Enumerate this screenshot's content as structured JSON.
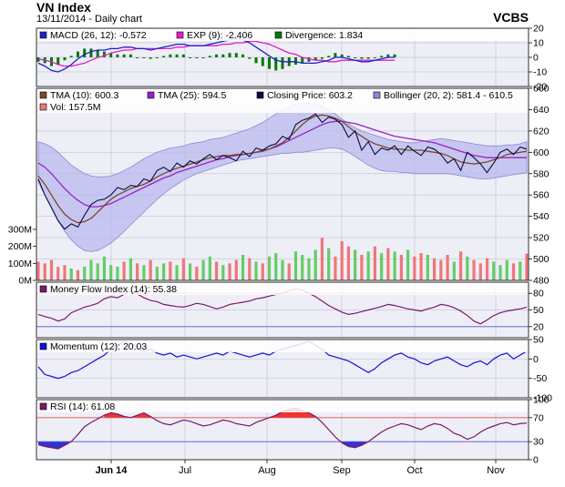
{
  "header": {
    "title": "VN Index",
    "subtitle": "13/11/2014 - Daily chart",
    "brand": "VCBS"
  },
  "colors": {
    "panel_bg": "#eeeef6",
    "grid": "#c8c8d8",
    "frame": "#333333",
    "macd": "#1f1fd0",
    "exp": "#e020c0",
    "divergence": "#007a00",
    "tma10": "#7a4a2a",
    "tma25": "#9a20c8",
    "close": "#0a0a40",
    "bollinger": "#8888dd",
    "vol_up": "#66cc66",
    "vol_down": "#ee7777",
    "mfi": "#7a1a6a",
    "momentum": "#1212d8",
    "rsi": "#7a1a6a",
    "ob_fill": "#ee3333",
    "os_fill": "#3333cc",
    "level_high": "#dd5555",
    "level_low": "#5555dd"
  },
  "chart_data": [
    {
      "type": "line",
      "panel": "macd",
      "ylim": [
        -20,
        20
      ],
      "yticks": [
        "20",
        "10",
        "0",
        "-10",
        "-20"
      ],
      "legend": [
        {
          "label": "MACD (26, 12): -0.572",
          "color": "#1f1fd0"
        },
        {
          "label": "EXP (9): -2.406",
          "color": "#e020c0"
        },
        {
          "label": "Divergence: 1.834",
          "color": "#007a00"
        }
      ],
      "series": {
        "macd": [
          -4,
          -6,
          -9,
          -10,
          -8,
          -5,
          -1,
          2,
          4,
          5,
          5,
          6,
          6,
          7,
          7,
          6,
          6,
          5,
          6,
          7,
          8,
          9,
          9,
          8,
          8,
          8,
          9,
          10,
          11,
          12,
          13,
          12,
          10,
          7,
          4,
          1,
          -2,
          -3,
          -3,
          -3,
          -4,
          -4,
          -4,
          -3,
          -2,
          0,
          0,
          -1,
          -2,
          -3,
          -3,
          -2,
          -1,
          0,
          0
        ],
        "exp": [
          -1,
          -2,
          -3,
          -5,
          -6,
          -6,
          -5,
          -4,
          -2,
          0,
          1,
          3,
          4,
          5,
          5,
          6,
          6,
          6,
          6,
          6,
          6,
          7,
          7,
          8,
          8,
          8,
          8,
          8,
          9,
          9,
          10,
          10,
          11,
          11,
          10,
          9,
          7,
          5,
          3,
          2,
          0,
          -1,
          -2,
          -2,
          -3,
          -3,
          -2,
          -2,
          -2,
          -2,
          -2,
          -2,
          -2,
          -2,
          -2
        ],
        "divergence": [
          -3,
          -4,
          -6,
          -5,
          -2,
          1,
          4,
          6,
          6,
          5,
          4,
          3,
          2,
          2,
          2,
          0,
          0,
          -1,
          0,
          1,
          2,
          2,
          2,
          0,
          0,
          0,
          1,
          2,
          2,
          3,
          3,
          2,
          -1,
          -4,
          -6,
          -8,
          -9,
          -8,
          -6,
          -5,
          -4,
          -3,
          -2,
          -1,
          1,
          3,
          2,
          1,
          0,
          -1,
          -1,
          0,
          1,
          2,
          2
        ]
      }
    },
    {
      "type": "line",
      "panel": "price",
      "ylim": [
        480,
        660
      ],
      "yticks": [
        "660",
        "640",
        "620",
        "600",
        "580",
        "560",
        "540",
        "520",
        "500",
        "480"
      ],
      "vol_yticks": [
        "300M",
        "200M",
        "100M",
        "0M"
      ],
      "legend": [
        {
          "label": "TMA (10): 600.3",
          "color": "#7a4a2a"
        },
        {
          "label": "TMA (25): 594.5",
          "color": "#9a20c8"
        },
        {
          "label": "Closing Price: 603.2",
          "color": "#0a0a40"
        },
        {
          "label": "Bollinger (20, 2): 581.4 - 610.5",
          "color": "#8888dd"
        },
        {
          "label": "Vol: 157.5M",
          "color": "#ee7777"
        }
      ],
      "series": {
        "close": [
          575,
          560,
          548,
          536,
          528,
          533,
          530,
          541,
          551,
          555,
          556,
          560,
          567,
          565,
          569,
          568,
          575,
          573,
          583,
          586,
          582,
          590,
          586,
          592,
          589,
          594,
          598,
          593,
          597,
          595,
          592,
          601,
          596,
          604,
          602,
          606,
          608,
          615,
          612,
          626,
          630,
          632,
          636,
          628,
          633,
          631,
          626,
          614,
          620,
          602,
          610,
          598,
          604,
          602,
          606,
          598,
          606,
          601,
          597,
          605,
          603,
          598,
          590,
          594,
          583,
          600,
          595,
          589,
          581,
          590,
          600,
          603,
          598,
          605,
          603
        ],
        "tma10": [
          578,
          570,
          560,
          550,
          542,
          537,
          534,
          535,
          538,
          544,
          550,
          556,
          560,
          563,
          566,
          568,
          570,
          573,
          577,
          580,
          583,
          585,
          587,
          589,
          591,
          593,
          595,
          596,
          597,
          597,
          598,
          598,
          599,
          600,
          601,
          603,
          606,
          609,
          614,
          620,
          626,
          631,
          634,
          635,
          634,
          632,
          629,
          624,
          619,
          615,
          611,
          608,
          606,
          604,
          603,
          603,
          602,
          602,
          602,
          601,
          600,
          599,
          597,
          594,
          591,
          590,
          589,
          590,
          591,
          593,
          595,
          598,
          599,
          600,
          601
        ],
        "tma25": [
          590,
          586,
          580,
          573,
          566,
          560,
          555,
          551,
          549,
          549,
          550,
          552,
          555,
          558,
          561,
          564,
          567,
          570,
          573,
          576,
          578,
          581,
          583,
          585,
          587,
          589,
          591,
          593,
          594,
          596,
          597,
          598,
          599,
          600,
          602,
          603,
          605,
          608,
          611,
          614,
          617,
          620,
          623,
          626,
          628,
          629,
          629,
          628,
          627,
          625,
          623,
          621,
          619,
          617,
          615,
          614,
          613,
          612,
          611,
          610,
          609,
          607,
          605,
          603,
          601,
          599,
          597,
          596,
          595,
          595,
          595,
          595,
          595,
          595,
          595
        ],
        "boll_upper": [
          610,
          608,
          605,
          600,
          594,
          588,
          584,
          580,
          578,
          577,
          577,
          578,
          580,
          583,
          586,
          590,
          594,
          597,
          600,
          602,
          604,
          605,
          606,
          608,
          609,
          610,
          612,
          613,
          614,
          616,
          618,
          620,
          622,
          625,
          628,
          632,
          636,
          640,
          643,
          645,
          646,
          646,
          645,
          643,
          640,
          636,
          631,
          627,
          623,
          620,
          618,
          616,
          614,
          612,
          611,
          610,
          609,
          609,
          610,
          611,
          612,
          613,
          612,
          611,
          610,
          609,
          608,
          607,
          606,
          606,
          606,
          607,
          607,
          608,
          610
        ],
        "boll_lower": [
          572,
          560,
          548,
          536,
          526,
          518,
          512,
          508,
          507,
          508,
          511,
          515,
          520,
          526,
          532,
          538,
          544,
          550,
          556,
          561,
          566,
          570,
          574,
          577,
          580,
          582,
          584,
          586,
          588,
          590,
          592,
          593,
          594,
          595,
          596,
          597,
          598,
          599,
          599,
          600,
          600,
          601,
          602,
          603,
          604,
          604,
          603,
          600,
          596,
          592,
          588,
          585,
          583,
          582,
          582,
          581,
          581,
          580,
          580,
          580,
          580,
          580,
          580,
          579,
          578,
          577,
          576,
          575,
          575,
          576,
          577,
          578,
          579,
          580,
          581
        ],
        "volume": [
          110,
          100,
          120,
          80,
          90,
          70,
          60,
          80,
          120,
          100,
          140,
          90,
          80,
          110,
          130,
          100,
          90,
          120,
          80,
          100,
          110,
          90,
          130,
          100,
          80,
          120,
          140,
          110,
          90,
          100,
          120,
          150,
          130,
          110,
          100,
          140,
          160,
          120,
          100,
          170,
          150,
          130,
          180,
          250,
          190,
          140,
          230,
          200,
          180,
          150,
          170,
          200,
          160,
          190,
          170,
          150,
          180,
          140,
          160,
          150,
          130,
          120,
          150,
          110,
          170,
          140,
          120,
          100,
          130,
          110,
          90,
          120,
          100,
          110,
          157
        ]
      }
    },
    {
      "type": "line",
      "panel": "mfi",
      "ylim": [
        0,
        100
      ],
      "yticks": [
        "80",
        "50",
        "20"
      ],
      "levels": [
        80,
        20
      ],
      "legend": [
        {
          "label": "Money Flow Index (14): 55.38",
          "color": "#7a1a6a"
        }
      ],
      "values": [
        42,
        38,
        35,
        30,
        34,
        45,
        50,
        55,
        58,
        62,
        70,
        74,
        72,
        78,
        84,
        79,
        72,
        67,
        65,
        60,
        58,
        56,
        55,
        58,
        62,
        60,
        56,
        52,
        55,
        60,
        62,
        64,
        66,
        70,
        72,
        75,
        78,
        80,
        85,
        88,
        86,
        80,
        74,
        66,
        58,
        52,
        46,
        42,
        44,
        47,
        50,
        53,
        56,
        60,
        58,
        55,
        52,
        50,
        48,
        52,
        55,
        60,
        58,
        54,
        48,
        40,
        30,
        25,
        32,
        40,
        45,
        48,
        50,
        52,
        55
      ]
    },
    {
      "type": "line",
      "panel": "momentum",
      "ylim": [
        -100,
        50
      ],
      "yticks": [
        "50",
        "0",
        "-50",
        "-100"
      ],
      "legend": [
        {
          "label": "Momentum (12): 20.03",
          "color": "#1212d8"
        }
      ],
      "values": [
        -20,
        -40,
        -45,
        -50,
        -45,
        -35,
        -30,
        -20,
        -10,
        0,
        10,
        25,
        35,
        45,
        40,
        30,
        20,
        25,
        15,
        10,
        15,
        5,
        10,
        5,
        0,
        5,
        10,
        15,
        10,
        20,
        15,
        10,
        5,
        10,
        15,
        10,
        20,
        25,
        30,
        35,
        40,
        45,
        35,
        25,
        10,
        5,
        0,
        -5,
        -15,
        -25,
        -35,
        -25,
        -10,
        0,
        10,
        15,
        5,
        0,
        -10,
        -15,
        -5,
        0,
        5,
        -5,
        -15,
        -20,
        -10,
        -5,
        -15,
        0,
        10,
        15,
        0,
        10,
        20
      ]
    },
    {
      "type": "line",
      "panel": "rsi",
      "ylim": [
        0,
        100
      ],
      "yticks": [
        "100",
        "70",
        "30",
        "0"
      ],
      "levels": [
        70,
        30
      ],
      "legend": [
        {
          "label": "RSI (14): 61.08",
          "color": "#7a1a6a"
        }
      ],
      "values": [
        25,
        22,
        20,
        18,
        24,
        30,
        42,
        55,
        62,
        68,
        74,
        78,
        76,
        72,
        70,
        74,
        78,
        72,
        65,
        60,
        58,
        62,
        66,
        64,
        60,
        56,
        58,
        62,
        66,
        64,
        60,
        58,
        56,
        62,
        66,
        70,
        74,
        80,
        84,
        86,
        82,
        78,
        72,
        62,
        50,
        38,
        28,
        22,
        20,
        24,
        30,
        38,
        46,
        52,
        56,
        60,
        58,
        54,
        50,
        56,
        60,
        58,
        52,
        44,
        40,
        34,
        38,
        46,
        52,
        56,
        60,
        62,
        58,
        60,
        61
      ]
    }
  ],
  "xaxis": {
    "labels": [
      "Jun 14",
      "Jul",
      "Aug",
      "Sep",
      "Oct",
      "Nov"
    ],
    "label_index": [
      8,
      19,
      31,
      42,
      53,
      65
    ],
    "n_points": 75
  }
}
